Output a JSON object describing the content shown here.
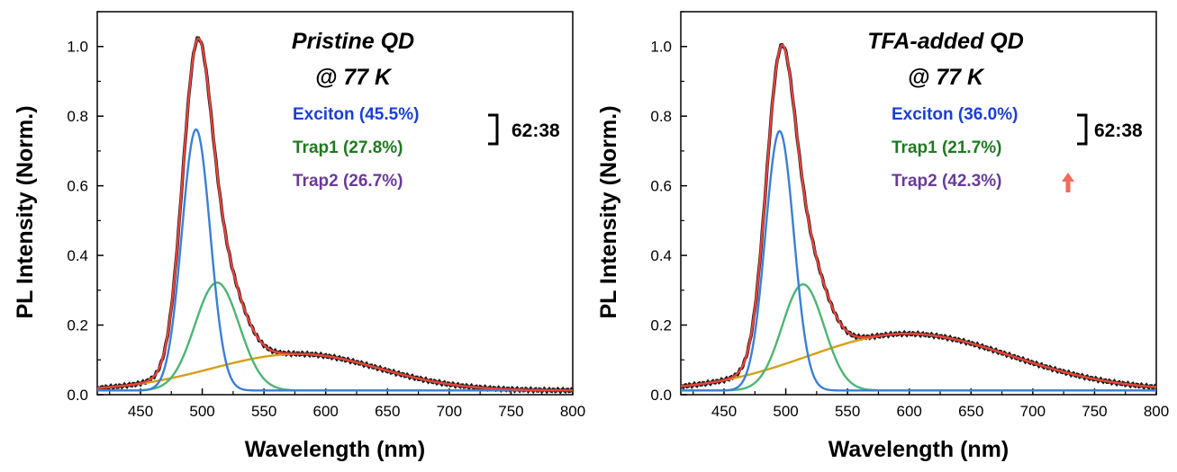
{
  "chart_data": [
    {
      "type": "line",
      "title_line1": "Pristine QD",
      "title_line2": "@ 77 K",
      "xlabel": "Wavelength (nm)",
      "ylabel": "PL Intensity (Norm.)",
      "xlim": [
        415,
        800
      ],
      "ylim": [
        0,
        1.1
      ],
      "xticks": [
        "450",
        "500",
        "550",
        "600",
        "650",
        "700",
        "750",
        "800"
      ],
      "yticks": [
        "0.0",
        "0.2",
        "0.4",
        "0.6",
        "0.8",
        "1.0"
      ],
      "legend": [
        {
          "label": "Exciton (45.5%)",
          "color": "#1a3fd6"
        },
        {
          "label": "Trap1 (27.8%)",
          "color": "#1e7a1e"
        },
        {
          "label": "Trap2 (26.7%)",
          "color": "#6a3a9a"
        }
      ],
      "ratio_label": "62:38",
      "show_arrow": false,
      "series": [
        {
          "name": "Exciton",
          "color": "#3b7fd6",
          "shape": "gauss",
          "center": 495,
          "amplitude": 0.75,
          "sigma": 11.5
        },
        {
          "name": "Trap1",
          "color": "#4cb574",
          "shape": "gauss",
          "center": 512,
          "amplitude": 0.31,
          "sigma": 18
        },
        {
          "name": "Trap2",
          "color": "#d4a017",
          "shape": "asym",
          "center": 578,
          "amplitude": 0.105,
          "sigma_left": 70,
          "sigma_right": 65
        },
        {
          "name": "Measured",
          "color": "#1a1a1a",
          "shape": "sum"
        },
        {
          "name": "Fit",
          "color": "#e8423c",
          "shape": "sum"
        }
      ]
    },
    {
      "type": "line",
      "title_line1": "TFA-added QD",
      "title_line2": "@ 77 K",
      "xlabel": "Wavelength (nm)",
      "ylabel": "PL Intensity (Norm.)",
      "xlim": [
        415,
        800
      ],
      "ylim": [
        0,
        1.1
      ],
      "xticks": [
        "450",
        "500",
        "550",
        "600",
        "650",
        "700",
        "750",
        "800"
      ],
      "yticks": [
        "0.0",
        "0.2",
        "0.4",
        "0.6",
        "0.8",
        "1.0"
      ],
      "legend": [
        {
          "label": "Exciton (36.0%)",
          "color": "#1a3fd6"
        },
        {
          "label": "Trap1 (21.7%)",
          "color": "#1e7a1e"
        },
        {
          "label": "Trap2 (42.3%)",
          "color": "#6a3a9a"
        }
      ],
      "ratio_label": "62:38",
      "show_arrow": true,
      "arrow_color": "#f06b5b",
      "series": [
        {
          "name": "Exciton",
          "color": "#3b7fd6",
          "shape": "gauss",
          "center": 495,
          "amplitude": 0.745,
          "sigma": 11.5
        },
        {
          "name": "Trap1",
          "color": "#4cb574",
          "shape": "gauss",
          "center": 514,
          "amplitude": 0.305,
          "sigma": 17
        },
        {
          "name": "Trap2",
          "color": "#d4a017",
          "shape": "asym",
          "center": 598,
          "amplitude": 0.163,
          "sigma_left": 80,
          "sigma_right": 85
        },
        {
          "name": "Measured",
          "color": "#1a1a1a",
          "shape": "sum"
        },
        {
          "name": "Fit",
          "color": "#e8423c",
          "shape": "sum"
        }
      ]
    }
  ]
}
